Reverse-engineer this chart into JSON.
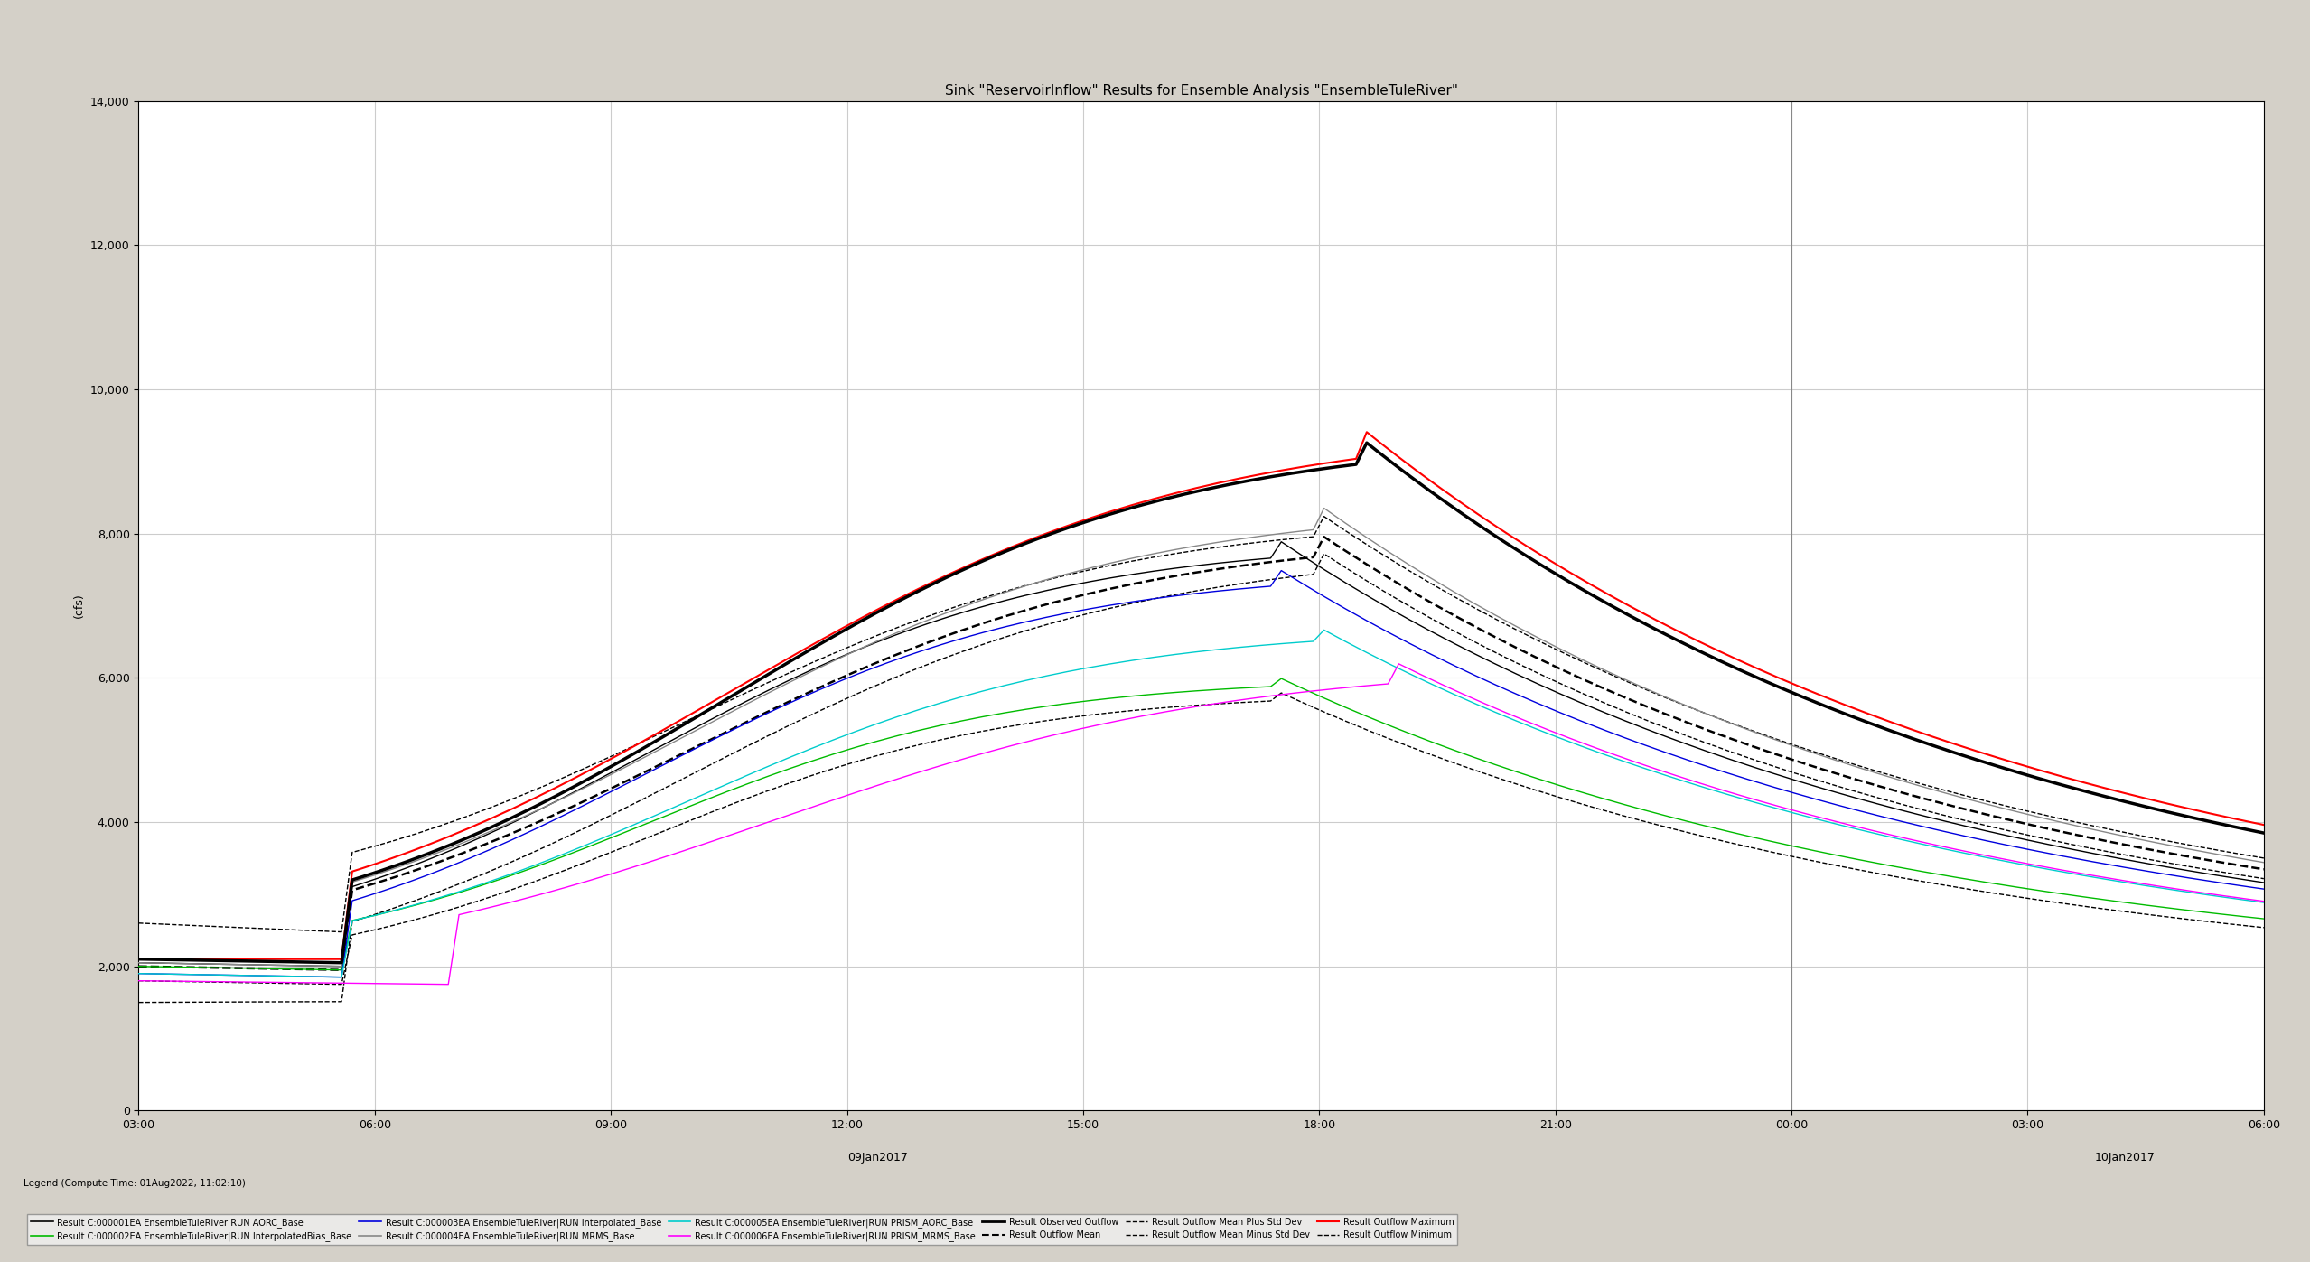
{
  "title": "Sink \"ReservoirInflow\" Results for Ensemble Analysis \"EnsembleTuleRiver\"",
  "ylabel": "(cfs)",
  "xlabel": "09Jan2017",
  "x_label2": "10Jan2017",
  "ylim": [
    0,
    14000
  ],
  "yticks": [
    0,
    2000,
    4000,
    6000,
    8000,
    10000,
    12000,
    14000
  ],
  "background_color": "#f0f0f0",
  "plot_bg_color": "#ffffff",
  "grid_color": "#cccccc",
  "title_color": "#000000",
  "legend_items": [
    {
      "label": "Result C:000001EA EnsembleTuleRiver|RUN AORC_Base",
      "color": "#000000",
      "linestyle": "solid",
      "linewidth": 1.2
    },
    {
      "label": "Result C:000002EA EnsembleTuleRiver|RUN InterpolatedBias_Base",
      "color": "#00cc00",
      "linestyle": "solid",
      "linewidth": 1.2
    },
    {
      "label": "Result C:000003EA EnsembleTuleRiver|RUN Interpolated_Base",
      "color": "#0000ff",
      "linestyle": "solid",
      "linewidth": 1.2
    },
    {
      "label": "Result C:000004EA EnsembleTuleRiver|RUN MRMS_Base",
      "color": "#808080",
      "linestyle": "solid",
      "linewidth": 1.2
    },
    {
      "label": "Result C:000005EA EnsembleTuleRiver|RUN PRISM_AORC_Base",
      "color": "#00cccc",
      "linestyle": "solid",
      "linewidth": 1.2
    },
    {
      "label": "Result C:000006EA EnsembleTuleRiver|RUN PRISM_MRMS_Base",
      "color": "#ff00ff",
      "linestyle": "solid",
      "linewidth": 1.2
    },
    {
      "label": "Result Observed Outflow",
      "color": "#000000",
      "linestyle": "solid",
      "linewidth": 2.5
    },
    {
      "label": "Result Outflow Mean",
      "color": "#000000",
      "linestyle": "dashed",
      "linewidth": 1.5
    },
    {
      "label": "Result Outflow Mean Plus Std Dev",
      "color": "#000000",
      "linestyle": "dashed",
      "linewidth": 1.0
    },
    {
      "label": "Result Outflow Mean Minus Std Dev",
      "color": "#000000",
      "linestyle": "dashed",
      "linewidth": 1.0
    },
    {
      "label": "Result Outflow Maximum",
      "color": "#ff0000",
      "linestyle": "solid",
      "linewidth": 1.5
    },
    {
      "label": "Result Outflow Minimum",
      "color": "#000000",
      "linestyle": "dashed",
      "linewidth": 1.0
    }
  ],
  "xtick_labels": [
    "03:00",
    "06:00",
    "09:00",
    "12:00",
    "15:00",
    "18:00",
    "21:00",
    "00:00",
    "03:00",
    "06:00"
  ],
  "n_points": 100,
  "compute_time": "Legend (Compute Time: 01Aug2022, 11:02:10)"
}
